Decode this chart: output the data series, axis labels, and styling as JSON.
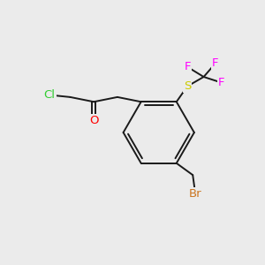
{
  "bg_color": "#ebebeb",
  "bond_color": "#1a1a1a",
  "bond_lw": 1.4,
  "atom_colors": {
    "Cl": "#32cd32",
    "O": "#ff0000",
    "S": "#cccc00",
    "F": "#ff00ff",
    "Br": "#cc7722",
    "C": "#1a1a1a"
  },
  "font_size": 9.5
}
